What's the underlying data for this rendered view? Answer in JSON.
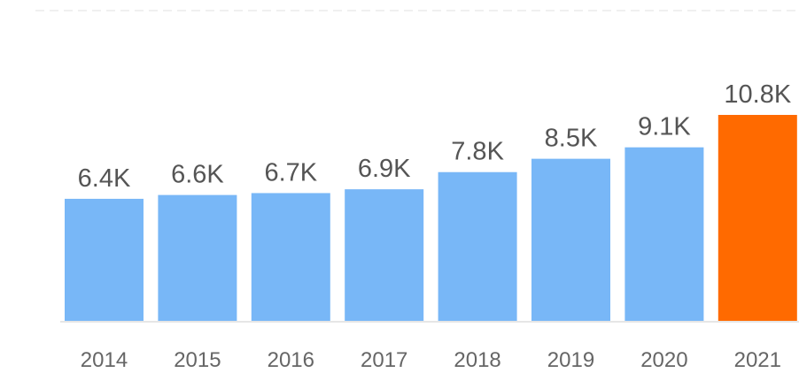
{
  "chart_data": {
    "type": "bar",
    "categories": [
      "2014",
      "2015",
      "2016",
      "2017",
      "2018",
      "2019",
      "2020",
      "2021"
    ],
    "values": [
      6400,
      6600,
      6700,
      6900,
      7800,
      8500,
      9100,
      10800
    ],
    "value_labels": [
      "6.4K",
      "6.6K",
      "6.7K",
      "6.9K",
      "7.8K",
      "8.5K",
      "9.1K",
      "10.8K"
    ],
    "colors": [
      "#78b7f7",
      "#78b7f7",
      "#78b7f7",
      "#78b7f7",
      "#78b7f7",
      "#78b7f7",
      "#78b7f7",
      "#ff6a00"
    ]
  }
}
